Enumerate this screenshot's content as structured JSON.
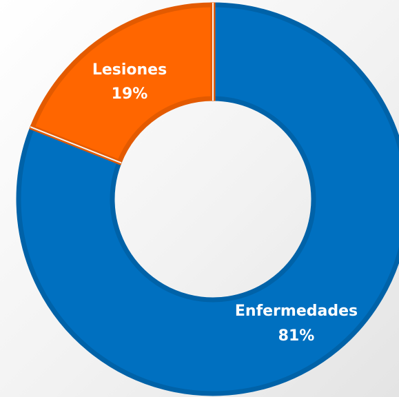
{
  "chart_data": {
    "type": "donut",
    "categories": [
      "Enfermedades",
      "Lesiones"
    ],
    "values": [
      81,
      19
    ],
    "value_labels": [
      "81%",
      "19%"
    ],
    "colors": [
      "#0070c0",
      "#ff6600"
    ],
    "edge_colors": [
      "#0062a8",
      "#e35a00"
    ]
  }
}
